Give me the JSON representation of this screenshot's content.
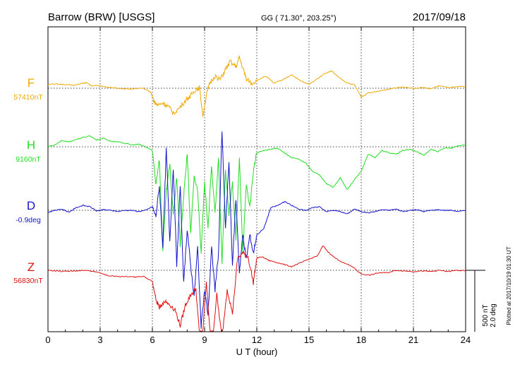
{
  "header": {
    "station": "Barrow (BRW)  [USGS]",
    "coords": "GG ( 71.30°, 203.25°)",
    "date": "2017/09/18"
  },
  "footer_note": "Plotted at 2017/10/19 01:30 UT",
  "scale_label": {
    "line1": "500 nT",
    "line2": "2.0 deg"
  },
  "chart_data": {
    "type": "line",
    "xlabel": "U T (hour)",
    "xlim": [
      0,
      24
    ],
    "xticks": [
      0,
      3,
      6,
      9,
      12,
      15,
      18,
      21,
      24
    ],
    "grid": true,
    "series": [
      {
        "name": "F",
        "baseline": "57410nT",
        "color": "#f0a800",
        "x": [
          0,
          0.5,
          1,
          1.5,
          2,
          2.2,
          2.5,
          3,
          3.5,
          4,
          4.5,
          5,
          5.5,
          5.9,
          6.1,
          6.3,
          6.6,
          6.9,
          7.2,
          7.5,
          7.9,
          8.2,
          8.5,
          8.7,
          8.9,
          9.1,
          9.3,
          9.6,
          9.9,
          10.2,
          10.5,
          10.8,
          11,
          11.2,
          11.4,
          11.7,
          12,
          12.5,
          13,
          13.5,
          14,
          14.5,
          15,
          15.5,
          15.9,
          16.3,
          16.7,
          17.2,
          17.6,
          18,
          18.4,
          19,
          19.5,
          20,
          20.5,
          21,
          21.5,
          22,
          22.5,
          23,
          23.5,
          24
        ],
        "values": [
          30,
          35,
          28,
          25,
          40,
          45,
          20,
          22,
          5,
          0,
          -5,
          -5,
          -2,
          -30,
          -110,
          -140,
          -120,
          -150,
          -200,
          -170,
          -100,
          -60,
          -10,
          10,
          -220,
          -60,
          40,
          100,
          70,
          150,
          220,
          170,
          250,
          160,
          80,
          40,
          60,
          100,
          40,
          70,
          110,
          60,
          30,
          80,
          120,
          140,
          90,
          40,
          30,
          -70,
          -40,
          -25,
          -10,
          5,
          10,
          0,
          5,
          -5,
          20,
          5,
          10,
          15
        ]
      },
      {
        "name": "H",
        "baseline": "9160nT",
        "color": "#22dd22",
        "x": [
          0,
          0.4,
          0.8,
          1.2,
          1.6,
          2,
          2.4,
          2.8,
          3.2,
          3.6,
          4,
          4.4,
          4.8,
          5.2,
          5.6,
          6,
          6.2,
          6.4,
          6.6,
          6.8,
          7,
          7.2,
          7.4,
          7.6,
          7.8,
          8,
          8.2,
          8.4,
          8.6,
          8.8,
          9,
          9.2,
          9.4,
          9.6,
          9.8,
          10,
          10.2,
          10.4,
          10.6,
          10.8,
          11,
          11.2,
          11.4,
          11.6,
          11.8,
          12,
          12.4,
          12.8,
          13.2,
          13.6,
          14,
          14.4,
          14.8,
          15.2,
          15.6,
          16,
          16.4,
          16.8,
          17.2,
          17.6,
          18,
          18.4,
          18.8,
          19.2,
          19.6,
          20,
          20.4,
          20.8,
          21.2,
          21.6,
          22,
          22.4,
          22.8,
          23.2,
          23.6,
          24
        ],
        "values": [
          0,
          15,
          50,
          40,
          60,
          75,
          90,
          55,
          70,
          45,
          40,
          30,
          15,
          20,
          0,
          -30,
          -300,
          -100,
          -850,
          -350,
          -150,
          -550,
          -250,
          -800,
          -400,
          -50,
          -700,
          -250,
          -350,
          -850,
          -300,
          -650,
          -150,
          -550,
          -100,
          -950,
          -200,
          -550,
          -300,
          -750,
          -100,
          -850,
          -300,
          -500,
          -200,
          -50,
          -30,
          -20,
          -10,
          -50,
          -90,
          -100,
          -130,
          -200,
          -230,
          -300,
          -330,
          -250,
          -350,
          -270,
          -200,
          -60,
          -90,
          -30,
          -50,
          -60,
          -30,
          -20,
          -40,
          -70,
          -20,
          -40,
          -10,
          -10,
          10,
          15
        ]
      },
      {
        "name": "D",
        "baseline": "-0.9deg",
        "color": "#1414cc",
        "x": [
          0,
          0.4,
          0.8,
          1.2,
          1.6,
          2,
          2.4,
          2.8,
          3.2,
          3.6,
          4,
          4.4,
          4.8,
          5.2,
          5.6,
          6,
          6.2,
          6.4,
          6.6,
          6.8,
          7,
          7.2,
          7.4,
          7.6,
          7.8,
          8,
          8.2,
          8.4,
          8.6,
          8.8,
          9,
          9.2,
          9.4,
          9.6,
          9.8,
          10,
          10.2,
          10.4,
          10.6,
          10.8,
          11,
          11.2,
          11.4,
          11.6,
          11.8,
          12,
          12.4,
          12.8,
          13.2,
          13.6,
          14,
          14.4,
          14.8,
          15.2,
          15.6,
          16,
          16.4,
          16.8,
          17.2,
          17.6,
          18,
          18.4,
          18.8,
          19.2,
          19.6,
          20,
          20.4,
          20.8,
          21.2,
          21.6,
          22,
          22.4,
          22.8,
          23.2,
          23.6,
          24
        ],
        "values": [
          -15,
          0,
          10,
          -15,
          20,
          40,
          30,
          -5,
          5,
          0,
          -10,
          0,
          0,
          -10,
          0,
          30,
          -50,
          200,
          -300,
          500,
          -250,
          350,
          -450,
          200,
          -600,
          -150,
          -450,
          -700,
          -300,
          -950,
          -650,
          -850,
          -300,
          -650,
          -350,
          650,
          -150,
          400,
          -450,
          100,
          -500,
          -200,
          -400,
          -200,
          -350,
          -200,
          -150,
          20,
          40,
          70,
          40,
          10,
          0,
          20,
          30,
          -10,
          0,
          -10,
          -30,
          10,
          -10,
          -20,
          -10,
          5,
          0,
          10,
          -10,
          0,
          5,
          -10,
          0,
          5,
          0,
          0,
          -10,
          0
        ]
      },
      {
        "name": "Z",
        "baseline": "56830nT",
        "color": "#e01010",
        "x": [
          0,
          0.5,
          1,
          1.5,
          2,
          2.5,
          3,
          3.5,
          4,
          4.5,
          5,
          5.5,
          6,
          6.2,
          6.4,
          6.7,
          7,
          7.3,
          7.6,
          7.9,
          8.2,
          8.5,
          8.8,
          9.1,
          9.4,
          9.7,
          10,
          10.3,
          10.6,
          10.9,
          11.2,
          11.5,
          11.8,
          12,
          12.3,
          12.7,
          13,
          13.5,
          14,
          14.5,
          15,
          15.5,
          15.8,
          16.1,
          16.5,
          17,
          17.5,
          18,
          18.5,
          19,
          19.5,
          20,
          20.5,
          21,
          21.5,
          22,
          22.5,
          23,
          23.5,
          24
        ],
        "values": [
          0,
          -5,
          -10,
          -5,
          0,
          -5,
          -20,
          -45,
          -50,
          -50,
          -55,
          -50,
          -90,
          -240,
          -300,
          -250,
          -280,
          -320,
          -450,
          -280,
          -200,
          -150,
          -700,
          -100,
          -650,
          -200,
          -550,
          -150,
          -350,
          100,
          140,
          110,
          -100,
          100,
          110,
          80,
          70,
          50,
          30,
          60,
          90,
          120,
          200,
          150,
          100,
          60,
          30,
          -30,
          -40,
          -20,
          -20,
          0,
          -5,
          -10,
          -5,
          -10,
          0,
          -10,
          0,
          -5
        ]
      }
    ]
  }
}
